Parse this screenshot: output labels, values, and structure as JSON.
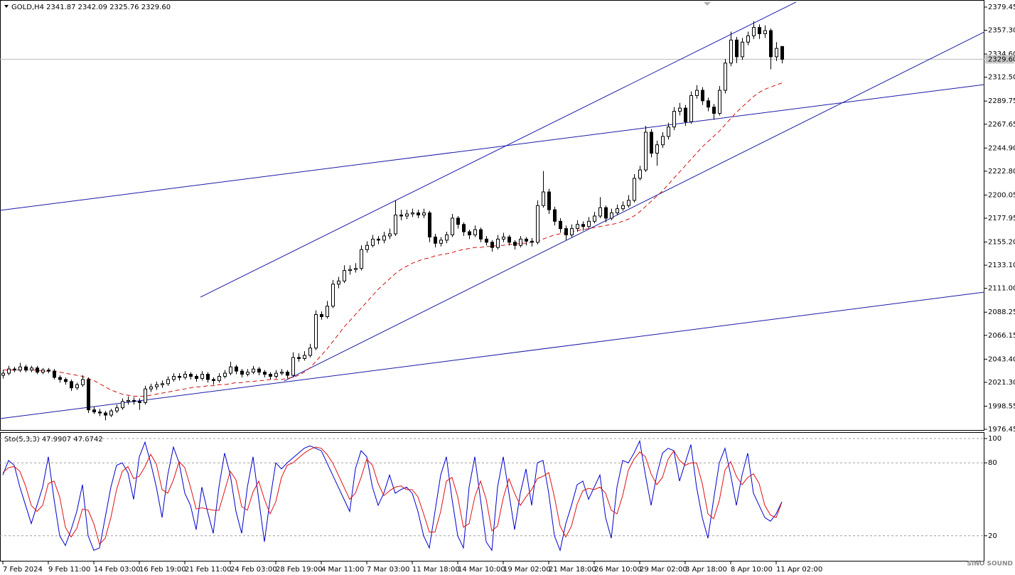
{
  "chart_data": {
    "type": "candlestick",
    "title": "GOLD,H4  2341.87 2342.09 2325.76 2329.60",
    "ylim": [
      1975.1,
      2386.2
    ],
    "yticks": [
      2379.45,
      {
        "value": 2357.3,
        "label": "2357.30"
      },
      {
        "value": 2334.6,
        "label": "2334.60"
      },
      {
        "value": 2312.5,
        "label": "2312.50"
      },
      2289.75,
      2267.65,
      {
        "value": 2244.9,
        "label": "2244.90"
      },
      {
        "value": 2222.8,
        "label": "2222.80"
      },
      2200.05,
      2177.95,
      {
        "value": 2155.2,
        "label": "2155.20"
      },
      {
        "value": 2133.1,
        "label": "2133.10"
      },
      {
        "value": 2111,
        "label": "2111.00"
      },
      2088.25,
      2066.15,
      {
        "value": 2043.4,
        "label": "2043.40"
      },
      {
        "value": 2021.3,
        "label": "2021.30"
      },
      1998.55,
      1976.45
    ],
    "last_price": {
      "value": 2329.6,
      "label": "2329.60"
    },
    "candles": [
      [
        2028,
        2033,
        2025,
        2030
      ],
      [
        2030,
        2037,
        2028,
        2034
      ],
      [
        2034,
        2036,
        2031,
        2033
      ],
      [
        2033,
        2040,
        2031,
        2036
      ],
      [
        2036,
        2038,
        2031,
        2033
      ],
      [
        2033,
        2037,
        2031,
        2035
      ],
      [
        2035,
        2037,
        2029,
        2031
      ],
      [
        2031,
        2035,
        2029,
        2033
      ],
      [
        2033,
        2035,
        2030,
        2032
      ],
      [
        2032,
        2034,
        2024,
        2026
      ],
      [
        2026,
        2028,
        2021,
        2024
      ],
      [
        2024,
        2026,
        2019,
        2022
      ],
      [
        2022,
        2024,
        2013,
        2016
      ],
      [
        2016,
        2021,
        2014,
        2019
      ],
      [
        2019,
        2028,
        2017,
        2024
      ],
      [
        2024,
        2026,
        1992,
        1995
      ],
      [
        1995,
        1998,
        1991,
        1993
      ],
      [
        1993,
        1996,
        1989,
        1992
      ],
      [
        1992,
        1994,
        1985,
        1990
      ],
      [
        1990,
        1996,
        1988,
        1994
      ],
      [
        1994,
        2000,
        1992,
        1997
      ],
      [
        1997,
        2006,
        1995,
        2003
      ],
      [
        2003,
        2008,
        2000,
        2004
      ],
      [
        2004,
        2007,
        2000,
        2003
      ],
      [
        2003,
        2006,
        1995,
        2002
      ],
      [
        2002,
        2018,
        2000,
        2015
      ],
      [
        2015,
        2020,
        2012,
        2017
      ],
      [
        2017,
        2022,
        2014,
        2019
      ],
      [
        2019,
        2023,
        2016,
        2020
      ],
      [
        2020,
        2027,
        2018,
        2024
      ],
      [
        2024,
        2030,
        2022,
        2027
      ],
      [
        2027,
        2030,
        2023,
        2026
      ],
      [
        2026,
        2032,
        2024,
        2029
      ],
      [
        2029,
        2031,
        2024,
        2027
      ],
      [
        2027,
        2029,
        2022,
        2025
      ],
      [
        2025,
        2032,
        2023,
        2029
      ],
      [
        2029,
        2031,
        2021,
        2024
      ],
      [
        2024,
        2026,
        2019,
        2023
      ],
      [
        2023,
        2030,
        2021,
        2027
      ],
      [
        2027,
        2033,
        2025,
        2030
      ],
      [
        2030,
        2041,
        2028,
        2036
      ],
      [
        2036,
        2038,
        2029,
        2032
      ],
      [
        2032,
        2034,
        2026,
        2029
      ],
      [
        2029,
        2034,
        2027,
        2031
      ],
      [
        2031,
        2037,
        2029,
        2034
      ],
      [
        2034,
        2036,
        2028,
        2031
      ],
      [
        2031,
        2033,
        2026,
        2029
      ],
      [
        2029,
        2031,
        2024,
        2027
      ],
      [
        2027,
        2033,
        2025,
        2030
      ],
      [
        2030,
        2034,
        2028,
        2031
      ],
      [
        2031,
        2033,
        2025,
        2028
      ],
      [
        2028,
        2050,
        2026,
        2045
      ],
      [
        2045,
        2049,
        2041,
        2044
      ],
      [
        2044,
        2051,
        2042,
        2047
      ],
      [
        2047,
        2058,
        2045,
        2054
      ],
      [
        2054,
        2090,
        2052,
        2086
      ],
      [
        2086,
        2089,
        2081,
        2084
      ],
      [
        2084,
        2099,
        2082,
        2094
      ],
      [
        2094,
        2119,
        2092,
        2115
      ],
      [
        2115,
        2122,
        2111,
        2118
      ],
      [
        2118,
        2133,
        2116,
        2128
      ],
      [
        2128,
        2133,
        2124,
        2129
      ],
      [
        2129,
        2135,
        2126,
        2130
      ],
      [
        2130,
        2152,
        2128,
        2148
      ],
      [
        2148,
        2156,
        2145,
        2152
      ],
      [
        2152,
        2162,
        2150,
        2158
      ],
      [
        2158,
        2161,
        2153,
        2157
      ],
      [
        2157,
        2165,
        2154,
        2161
      ],
      [
        2161,
        2168,
        2158,
        2163
      ],
      [
        2163,
        2195,
        2161,
        2181
      ],
      [
        2181,
        2186,
        2176,
        2180
      ],
      [
        2180,
        2186,
        2177,
        2182
      ],
      [
        2182,
        2187,
        2179,
        2183
      ],
      [
        2183,
        2186,
        2178,
        2181
      ],
      [
        2181,
        2187,
        2178,
        2183
      ],
      [
        2183,
        2185,
        2155,
        2160
      ],
      [
        2160,
        2163,
        2150,
        2154
      ],
      [
        2154,
        2160,
        2151,
        2157
      ],
      [
        2157,
        2165,
        2154,
        2162
      ],
      [
        2162,
        2182,
        2160,
        2178
      ],
      [
        2178,
        2180,
        2168,
        2172
      ],
      [
        2172,
        2174,
        2161,
        2165
      ],
      [
        2165,
        2167,
        2158,
        2162
      ],
      [
        2162,
        2171,
        2160,
        2167
      ],
      [
        2167,
        2169,
        2155,
        2158
      ],
      [
        2158,
        2161,
        2152,
        2155
      ],
      [
        2155,
        2157,
        2146,
        2150
      ],
      [
        2150,
        2162,
        2148,
        2158
      ],
      [
        2158,
        2164,
        2155,
        2160
      ],
      [
        2160,
        2162,
        2152,
        2155
      ],
      [
        2155,
        2157,
        2148,
        2152
      ],
      [
        2152,
        2161,
        2150,
        2158
      ],
      [
        2158,
        2160,
        2152,
        2156
      ],
      [
        2156,
        2159,
        2151,
        2155
      ],
      [
        2155,
        2195,
        2153,
        2190
      ],
      [
        2190,
        2223,
        2188,
        2203
      ],
      [
        2203,
        2206,
        2182,
        2186
      ],
      [
        2186,
        2189,
        2171,
        2175
      ],
      [
        2175,
        2178,
        2164,
        2168
      ],
      [
        2168,
        2171,
        2157,
        2162
      ],
      [
        2162,
        2172,
        2160,
        2168
      ],
      [
        2168,
        2176,
        2165,
        2172
      ],
      [
        2172,
        2175,
        2166,
        2170
      ],
      [
        2170,
        2179,
        2168,
        2175
      ],
      [
        2175,
        2184,
        2173,
        2180
      ],
      [
        2180,
        2198,
        2178,
        2188
      ],
      [
        2188,
        2190,
        2174,
        2178
      ],
      [
        2178,
        2187,
        2176,
        2183
      ],
      [
        2183,
        2191,
        2181,
        2187
      ],
      [
        2187,
        2194,
        2185,
        2190
      ],
      [
        2190,
        2200,
        2188,
        2195
      ],
      [
        2195,
        2220,
        2193,
        2216
      ],
      [
        2216,
        2228,
        2214,
        2224
      ],
      [
        2224,
        2266,
        2222,
        2260
      ],
      [
        2260,
        2263,
        2236,
        2240
      ],
      [
        2240,
        2252,
        2228,
        2248
      ],
      [
        2248,
        2260,
        2245,
        2256
      ],
      [
        2256,
        2269,
        2253,
        2265
      ],
      [
        2265,
        2284,
        2262,
        2280
      ],
      [
        2280,
        2288,
        2276,
        2283
      ],
      [
        2283,
        2286,
        2266,
        2270
      ],
      [
        2270,
        2299,
        2268,
        2295
      ],
      [
        2295,
        2305,
        2292,
        2300
      ],
      [
        2300,
        2303,
        2286,
        2290
      ],
      [
        2290,
        2293,
        2280,
        2284
      ],
      [
        2284,
        2287,
        2272,
        2278
      ],
      [
        2278,
        2304,
        2276,
        2300
      ],
      [
        2300,
        2330,
        2297,
        2326
      ],
      [
        2326,
        2356,
        2323,
        2348
      ],
      [
        2348,
        2351,
        2326,
        2332
      ],
      [
        2332,
        2350,
        2329,
        2346
      ],
      [
        2346,
        2356,
        2343,
        2352
      ],
      [
        2352,
        2366,
        2349,
        2360
      ],
      [
        2360,
        2363,
        2349,
        2354
      ],
      [
        2354,
        2362,
        2350,
        2357
      ],
      [
        2357,
        2359,
        2320,
        2332
      ],
      [
        2332,
        2346,
        2328,
        2340
      ],
      [
        2341.87,
        2342.09,
        2325.76,
        2329.6
      ]
    ],
    "ma": {
      "color": "#d01010",
      "values": [
        2033,
        2033,
        2033,
        2033,
        2033,
        2033,
        2033,
        2032,
        2032,
        2032,
        2031,
        2030,
        2029,
        2028,
        2027,
        2025,
        2023,
        2020,
        2017,
        2014,
        2012,
        2010,
        2009,
        2008,
        2008,
        2008,
        2009,
        2010,
        2011,
        2012,
        2013,
        2014,
        2015,
        2016,
        2017,
        2017,
        2018,
        2018,
        2019,
        2019,
        2020,
        2021,
        2021,
        2022,
        2022,
        2023,
        2023,
        2024,
        2024,
        2024,
        2025,
        2026,
        2028,
        2031,
        2035,
        2041,
        2047,
        2053,
        2060,
        2067,
        2074,
        2080,
        2086,
        2092,
        2098,
        2104,
        2110,
        2115,
        2120,
        2125,
        2129,
        2132,
        2135,
        2137,
        2139,
        2140,
        2142,
        2143,
        2144,
        2145,
        2147,
        2148,
        2149,
        2150,
        2150,
        2151,
        2151,
        2152,
        2152,
        2153,
        2153,
        2154,
        2154,
        2155,
        2156,
        2158,
        2160,
        2162,
        2163,
        2164,
        2165,
        2166,
        2167,
        2168,
        2169,
        2170,
        2171,
        2172,
        2173,
        2175,
        2177,
        2180,
        2184,
        2189,
        2194,
        2199,
        2204,
        2210,
        2216,
        2222,
        2228,
        2234,
        2240,
        2246,
        2251,
        2256,
        2261,
        2267,
        2273,
        2279,
        2284,
        2289,
        2294,
        2298,
        2301,
        2303,
        2305,
        2307
      ]
    },
    "trend_lines": {
      "color": "#1a1aa8",
      "lines": [
        {
          "x": [
            34.75,
            139.5
          ],
          "y": [
            2102.6,
            2384.2
          ]
        },
        {
          "x": [
            49.5,
            172.6
          ],
          "y": [
            2022.6,
            2355.7
          ]
        },
        {
          "x": [
            -0.5,
            172.6
          ],
          "y": [
            2185.4,
            2305.5
          ]
        },
        {
          "x": [
            -0.5,
            172.6
          ],
          "y": [
            1986.6,
            2107.4
          ]
        }
      ]
    },
    "x_labels": [
      "7 Feb 2024",
      "9 Feb 11:00",
      "14 Feb 03:00",
      "16 Feb 19:00",
      "21 Feb 11:00",
      "24 Feb 03:00",
      "28 Feb 19:00",
      "4 Mar 11:00",
      "7 Mar 03:00",
      "11 Mar 18:00",
      "14 Mar 10:00",
      "19 Mar 02:00",
      "21 Mar 18:00",
      "26 Mar 10:00",
      "29 Mar 02:00",
      "3 Apr 18:00",
      "8 Apr 10:00",
      "11 Apr 02:00"
    ],
    "stochastic": {
      "label": "Sto(5,3,3) 47.9907 47.6742",
      "ylim": [
        0,
        100
      ],
      "yticks": [
        100,
        80,
        20
      ],
      "series": [
        {
          "color": "#0000cd",
          "values": [
            70,
            82,
            78,
            60,
            45,
            30,
            45,
            60,
            85,
            50,
            20,
            12,
            25,
            40,
            62,
            20,
            8,
            10,
            35,
            60,
            78,
            80,
            72,
            50,
            85,
            97,
            80,
            60,
            35,
            70,
            93,
            80,
            55,
            45,
            25,
            60,
            40,
            22,
            60,
            88,
            70,
            40,
            22,
            60,
            85,
            50,
            15,
            50,
            80,
            75,
            80,
            84,
            88,
            92,
            94,
            92,
            90,
            80,
            70,
            60,
            50,
            40,
            75,
            90,
            85,
            60,
            45,
            55,
            70,
            55,
            58,
            60,
            55,
            40,
            20,
            10,
            40,
            70,
            85,
            50,
            20,
            10,
            60,
            85,
            50,
            15,
            8,
            60,
            85,
            55,
            25,
            55,
            75,
            45,
            80,
            82,
            55,
            20,
            8,
            30,
            45,
            62,
            65,
            50,
            60,
            70,
            35,
            18,
            60,
            82,
            80,
            88,
            98,
            70,
            45,
            70,
            88,
            92,
            90,
            65,
            80,
            95,
            60,
            35,
            18,
            50,
            80,
            92,
            70,
            45,
            70,
            88,
            55,
            45,
            35,
            32,
            38,
            47.9907
          ]
        },
        {
          "color": "#e01010",
          "values": [
            72,
            76,
            77,
            73,
            61,
            45,
            40,
            45,
            63,
            65,
            52,
            27,
            19,
            26,
            42,
            41,
            30,
            13,
            18,
            35,
            58,
            73,
            77,
            67,
            69,
            77,
            87,
            79,
            58,
            55,
            66,
            81,
            76,
            60,
            42,
            43,
            42,
            41,
            41,
            57,
            73,
            66,
            44,
            41,
            56,
            65,
            50,
            38,
            48,
            68,
            78,
            80,
            84,
            88,
            91,
            93,
            92,
            87,
            80,
            70,
            60,
            50,
            55,
            68,
            83,
            78,
            63,
            53,
            57,
            60,
            61,
            58,
            58,
            52,
            38,
            23,
            23,
            40,
            65,
            68,
            52,
            27,
            30,
            52,
            65,
            50,
            24,
            28,
            51,
            67,
            55,
            45,
            52,
            58,
            67,
            69,
            72,
            52,
            28,
            19,
            28,
            46,
            57,
            59,
            58,
            60,
            55,
            41,
            38,
            53,
            74,
            83,
            89,
            85,
            71,
            62,
            68,
            83,
            90,
            82,
            78,
            80,
            80,
            63,
            38,
            34,
            49,
            74,
            81,
            69,
            62,
            68,
            71,
            63,
            45,
            37,
            35,
            47.6742
          ]
        }
      ]
    },
    "watermark": "SINO SOUND"
  }
}
